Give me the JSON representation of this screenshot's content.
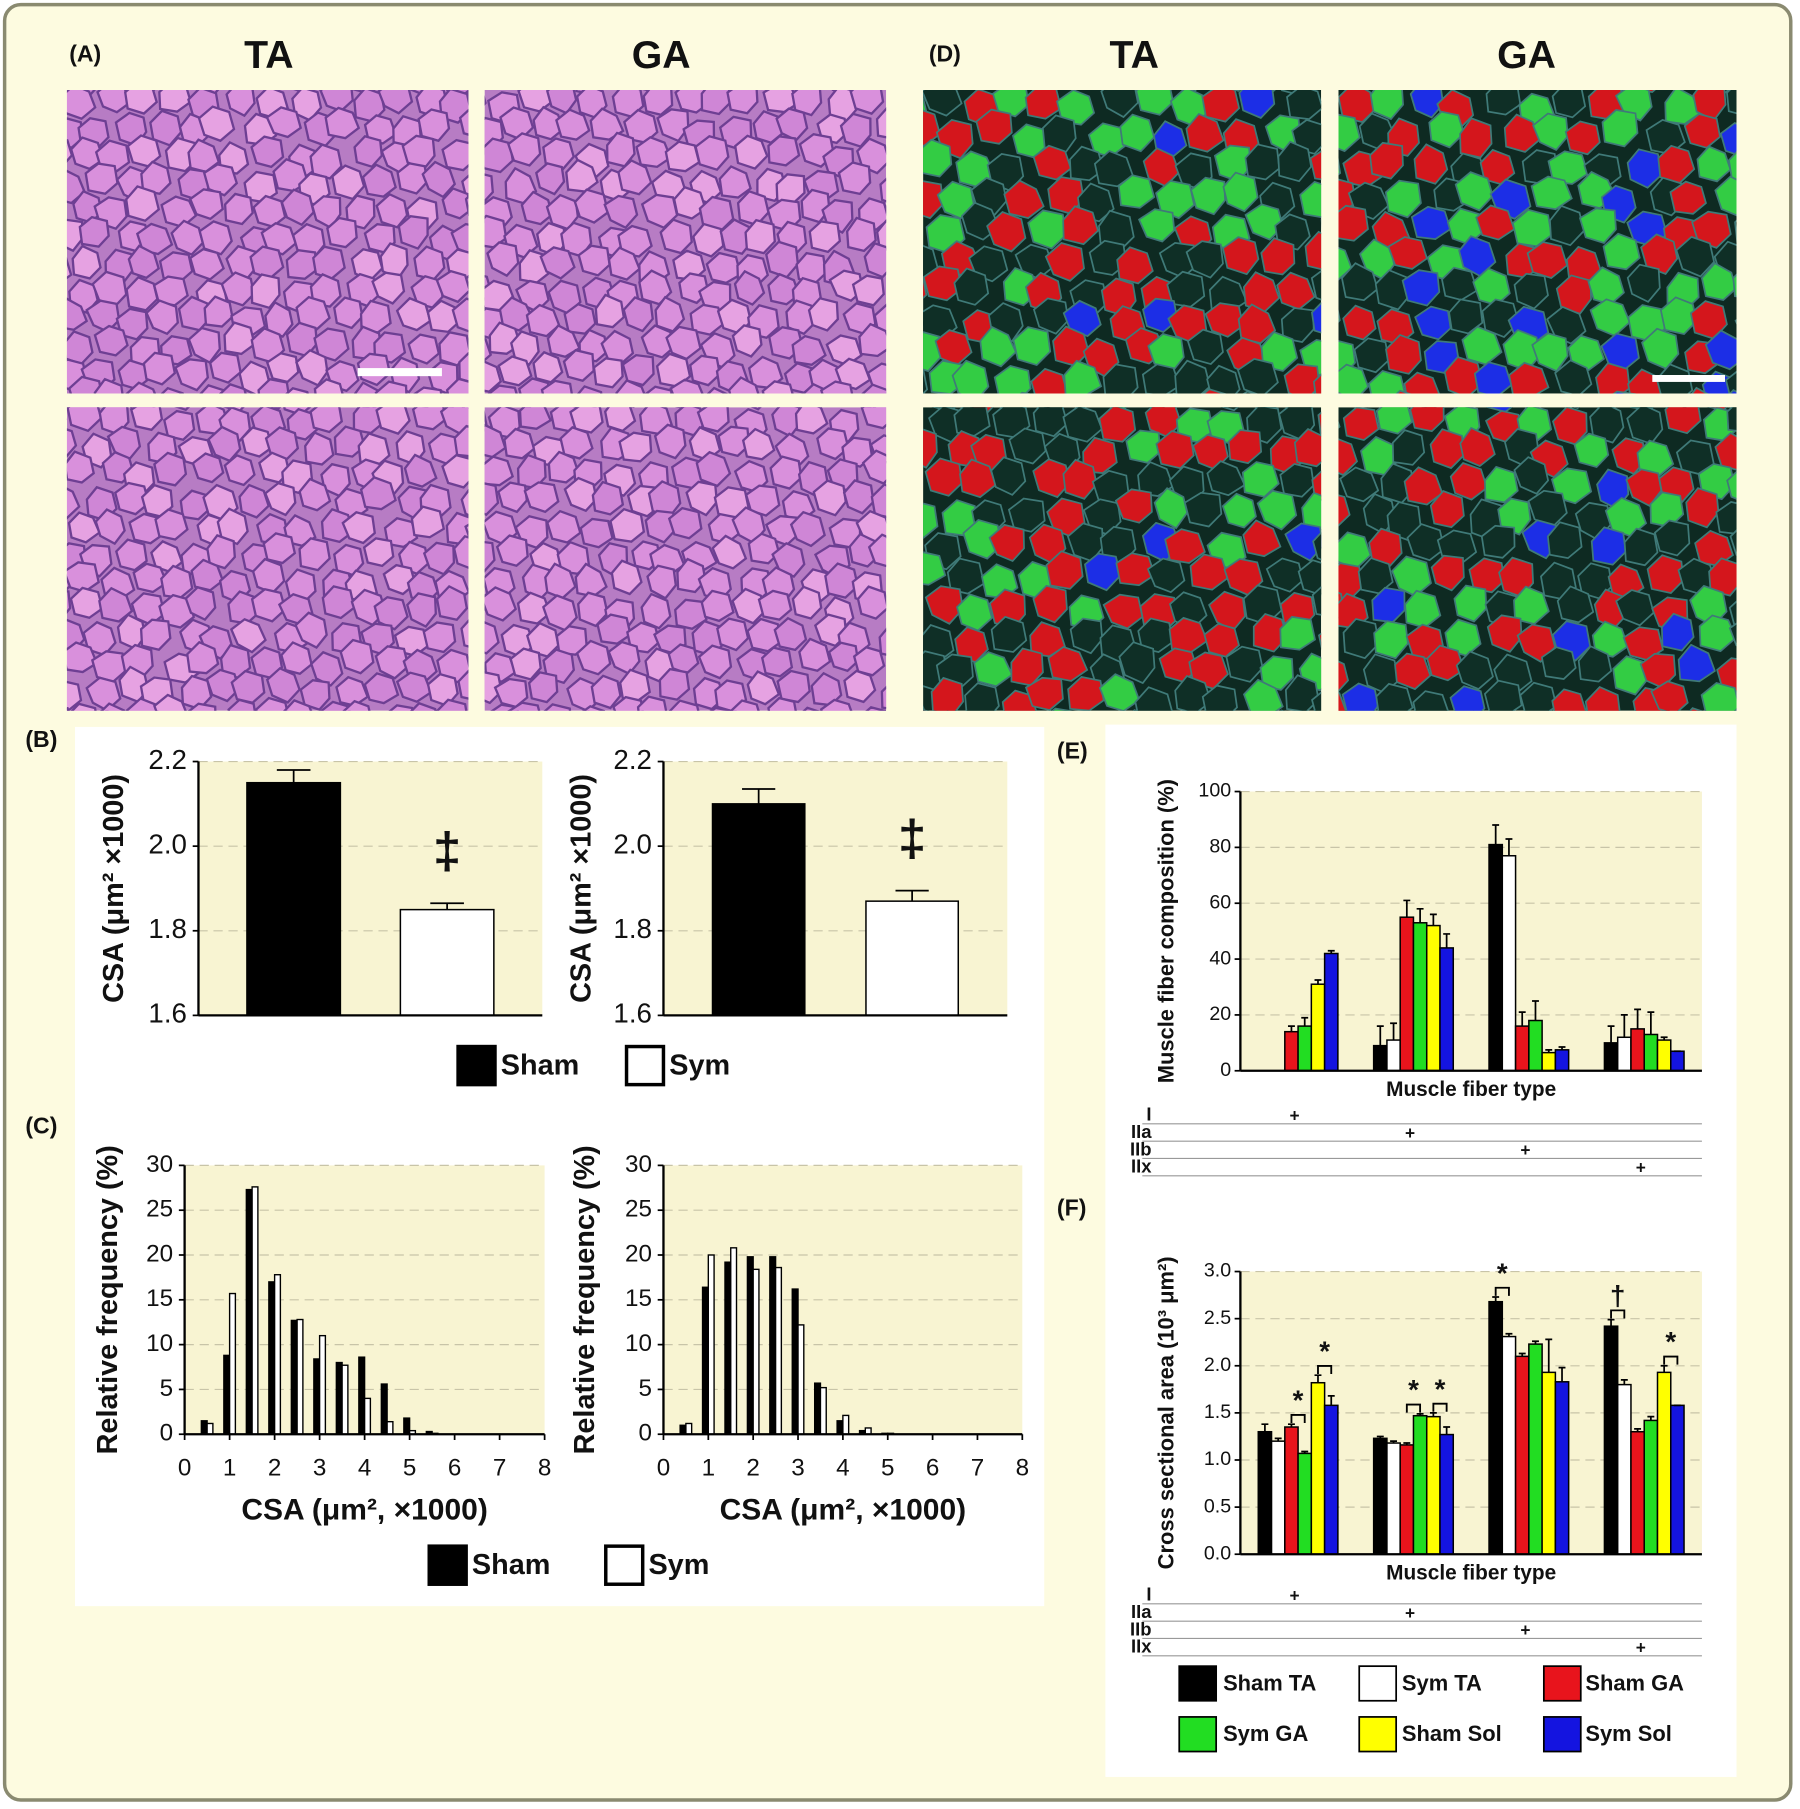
{
  "figure": {
    "panel_labels": [
      "(A)",
      "(B)",
      "(C)",
      "(D)",
      "(E)",
      "(F)"
    ],
    "headers": [
      "TA",
      "GA",
      "TA",
      "GA"
    ]
  },
  "chart_data": [
    {
      "type": "bar",
      "y_label": "CSA (μm² ×1000)",
      "categories": [
        null
      ],
      "series": [
        {
          "name": "Sham",
          "color": "#000000",
          "values": [
            2.15
          ],
          "errors": [
            0.03
          ]
        },
        {
          "name": "Sym",
          "color": "#ffffff",
          "values": [
            1.85
          ],
          "errors": [
            0.015
          ]
        }
      ],
      "annotations": [
        "‡"
      ],
      "ylim": [
        1.6,
        2.2
      ],
      "yticks": [
        1.6,
        1.8,
        {
          "value": 2,
          "label": "2.0"
        },
        2.2
      ],
      "grid": true
    },
    {
      "type": "bar",
      "y_label": "CSA (μm² ×1000)",
      "categories": [
        null
      ],
      "series": [
        {
          "color": "#000000",
          "values": [
            2.1
          ],
          "errors": [
            0.035
          ]
        },
        {
          "color": "#ffffff",
          "values": [
            1.87
          ],
          "errors": [
            0.025
          ]
        }
      ],
      "annotations": [
        "‡"
      ],
      "ylim": [
        1.6,
        2.2
      ],
      "yticks": [
        1.6,
        1.8,
        {
          "value": 2,
          "label": "2.0"
        },
        2.2
      ],
      "grid": true
    },
    {
      "type": "bar",
      "y_label": "Relative frequency (%)",
      "x_label": "CSA (μm², ×1000)",
      "x": [
        0.5,
        1,
        1.5,
        2,
        2.5,
        3,
        3.5,
        4,
        4.5,
        5,
        5.5
      ],
      "series": [
        {
          "name": "Sham",
          "color": "#000000",
          "values": [
            1.5,
            8.8,
            27.3,
            17.0,
            12.7,
            8.4,
            8.0,
            8.6,
            5.6,
            1.8,
            0.3
          ]
        },
        {
          "name": "Sym",
          "color": "#ffffff",
          "values": [
            1.2,
            15.7,
            27.6,
            17.8,
            12.8,
            11.0,
            7.7,
            4.0,
            1.4,
            0.4,
            0.1
          ]
        }
      ],
      "xlim": [
        0,
        8
      ],
      "xticks": [
        0,
        1,
        2,
        3,
        4,
        5,
        6,
        7,
        8
      ],
      "ylim": [
        0,
        30
      ],
      "yticks": [
        0,
        5,
        10,
        15,
        20,
        25,
        30
      ],
      "grid": true
    },
    {
      "type": "bar",
      "y_label": "Relative frequency (%)",
      "x_label": "CSA (μm², ×1000)",
      "x": [
        0.5,
        1,
        1.5,
        2,
        2.5,
        3,
        3.5,
        4,
        4.5,
        5
      ],
      "series": [
        {
          "color": "#000000",
          "values": [
            1.0,
            16.4,
            19.2,
            19.8,
            19.8,
            16.2,
            5.7,
            1.5,
            0.4,
            0.1
          ]
        },
        {
          "color": "#ffffff",
          "values": [
            1.2,
            20.0,
            20.8,
            18.4,
            18.6,
            12.2,
            5.2,
            2.1,
            0.7,
            0.1
          ]
        }
      ],
      "xlim": [
        0,
        8
      ],
      "xticks": [
        0,
        1,
        2,
        3,
        4,
        5,
        6,
        7,
        8
      ],
      "ylim": [
        0,
        30
      ],
      "yticks": [
        0,
        5,
        10,
        15,
        20,
        25,
        30
      ],
      "grid": true
    },
    {
      "type": "bar",
      "y_label": "Muscle fiber composition (%)",
      "x_label": "Muscle fiber type",
      "categories": [
        "I",
        "IIa",
        "IIb",
        "IIx"
      ],
      "row_markers": [
        "+",
        "+",
        "+",
        "+"
      ],
      "series": [
        {
          "color": "#000000",
          "values": [
            null,
            9,
            81,
            10
          ],
          "errors": [
            null,
            7,
            7,
            6
          ]
        },
        {
          "color": "#ffffff",
          "values": [
            null,
            11,
            77,
            12
          ],
          "errors": [
            null,
            6,
            6,
            8
          ]
        },
        {
          "color": "#e8141c",
          "values": [
            14,
            55,
            16,
            15
          ],
          "errors": [
            2,
            6,
            5,
            7
          ]
        },
        {
          "color": "#22dd22",
          "values": [
            16,
            53,
            18,
            13
          ],
          "errors": [
            3,
            5,
            7,
            8
          ]
        },
        {
          "color": "#ffff00",
          "values": [
            31,
            52,
            6.5,
            11
          ],
          "errors": [
            1.5,
            4,
            1,
            1
          ]
        },
        {
          "color": "#1414e0",
          "values": [
            42,
            44,
            7.5,
            7
          ],
          "errors": [
            1,
            5,
            1,
            0
          ]
        }
      ],
      "ylim": [
        0,
        100
      ],
      "yticks": [
        0,
        20,
        40,
        60,
        80,
        100
      ],
      "grid": true
    },
    {
      "type": "bar",
      "y_label": "Cross sectional area (10³ μm²)",
      "x_label": "Muscle fiber type",
      "categories": [
        "I",
        "IIa",
        "IIb",
        "IIx"
      ],
      "row_markers": [
        "+",
        "+",
        "+",
        "+"
      ],
      "series": [
        {
          "name": "Sham TA",
          "color": "#000000",
          "values": [
            1.3,
            1.23,
            2.68,
            2.42
          ],
          "errors": [
            0.08,
            0.02,
            0.05,
            0.07
          ]
        },
        {
          "name": "Sym TA",
          "color": "#ffffff",
          "values": [
            1.2,
            1.18,
            2.31,
            1.8
          ],
          "errors": [
            0.03,
            0.02,
            0.03,
            0.05
          ]
        },
        {
          "name": "Sham GA",
          "color": "#e8141c",
          "values": [
            1.35,
            1.16,
            2.1,
            1.3
          ],
          "errors": [
            0.03,
            0.02,
            0.03,
            0.03
          ]
        },
        {
          "name": "Sym GA",
          "color": "#22dd22",
          "values": [
            1.07,
            1.47,
            2.23,
            1.42
          ],
          "errors": [
            0.02,
            0.02,
            0.03,
            0.04
          ]
        },
        {
          "name": "Sham Sol",
          "color": "#ffff00",
          "values": [
            1.82,
            1.46,
            1.93,
            1.93
          ],
          "errors": [
            0.08,
            0.04,
            0.35,
            0.07
          ]
        },
        {
          "name": "Sym Sol",
          "color": "#1414e0",
          "values": [
            1.58,
            1.27,
            1.83,
            1.58
          ],
          "errors": [
            0.1,
            0.08,
            0.15,
            0
          ]
        }
      ],
      "annotations": [
        "*",
        "*",
        "*",
        "*",
        "*",
        "†",
        "*"
      ],
      "ylim": [
        0,
        3
      ],
      "yticks": [
        {
          "value": 0,
          "label": "0.0"
        },
        0.5,
        {
          "value": 1,
          "label": "1.0"
        },
        1.5,
        {
          "value": 2,
          "label": "2.0"
        },
        2.5,
        {
          "value": 3,
          "label": "3.0"
        }
      ],
      "grid": true
    }
  ]
}
